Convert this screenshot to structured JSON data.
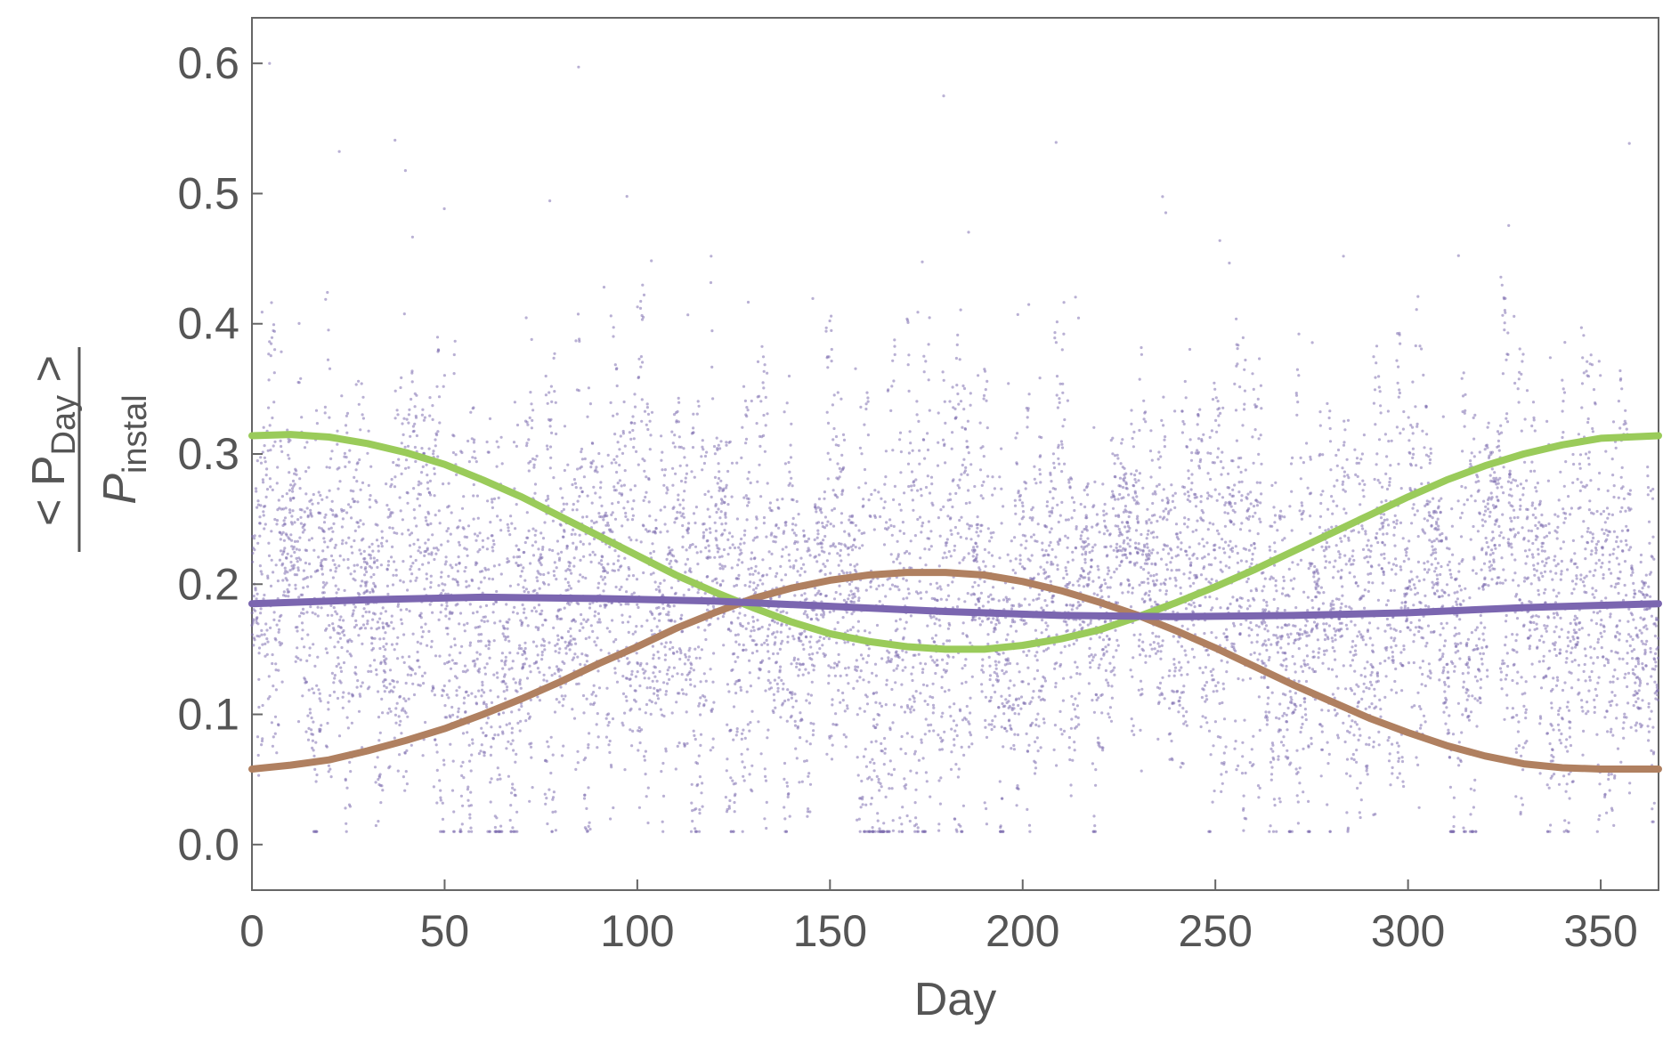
{
  "chart_data": {
    "type": "scatter",
    "title": "",
    "xlabel": "Day",
    "ylabel": {
      "numerator": "< P",
      "numerator_sub": "Day",
      "numerator_tail": " >",
      "denominator": "P",
      "denominator_sub": "instal"
    },
    "xlim": [
      0,
      365
    ],
    "ylim": [
      -0.035,
      0.635
    ],
    "xticks": [
      "0",
      "50",
      "100",
      "150",
      "200",
      "250",
      "300",
      "350"
    ],
    "yticks": [
      "0.0",
      "0.1",
      "0.2",
      "0.3",
      "0.4",
      "0.5",
      "0.6"
    ],
    "grid": false,
    "legend": "none",
    "scatter_series": {
      "color": "#8070b0",
      "points_per_day": 24,
      "mean": 0.185,
      "min": 0.01,
      "max": 0.6,
      "days": [
        0,
        365
      ]
    },
    "series": [
      {
        "color": "#9acb5a",
        "x": [
          0,
          10,
          20,
          30,
          40,
          50,
          60,
          70,
          80,
          90,
          100,
          110,
          120,
          130,
          140,
          150,
          160,
          170,
          180,
          190,
          200,
          210,
          220,
          230,
          240,
          250,
          260,
          270,
          280,
          290,
          300,
          310,
          320,
          330,
          340,
          350,
          365
        ],
        "y": [
          0.314,
          0.315,
          0.313,
          0.308,
          0.301,
          0.292,
          0.28,
          0.267,
          0.252,
          0.237,
          0.222,
          0.207,
          0.194,
          0.182,
          0.171,
          0.162,
          0.156,
          0.152,
          0.15,
          0.15,
          0.153,
          0.158,
          0.165,
          0.175,
          0.186,
          0.198,
          0.211,
          0.225,
          0.239,
          0.253,
          0.267,
          0.28,
          0.291,
          0.3,
          0.307,
          0.312,
          0.314
        ]
      },
      {
        "color": "#b08060",
        "x": [
          0,
          10,
          20,
          30,
          40,
          50,
          60,
          70,
          80,
          90,
          100,
          110,
          120,
          130,
          140,
          150,
          160,
          170,
          180,
          190,
          200,
          210,
          220,
          230,
          240,
          250,
          260,
          270,
          280,
          290,
          300,
          310,
          320,
          330,
          340,
          350,
          365
        ],
        "y": [
          0.058,
          0.061,
          0.065,
          0.072,
          0.08,
          0.089,
          0.1,
          0.112,
          0.125,
          0.139,
          0.152,
          0.166,
          0.178,
          0.189,
          0.197,
          0.203,
          0.207,
          0.209,
          0.209,
          0.207,
          0.202,
          0.195,
          0.186,
          0.176,
          0.164,
          0.151,
          0.137,
          0.123,
          0.11,
          0.097,
          0.086,
          0.076,
          0.068,
          0.062,
          0.059,
          0.058,
          0.058
        ]
      },
      {
        "color": "#7b66b0",
        "x": [
          0,
          30,
          60,
          90,
          120,
          150,
          180,
          210,
          240,
          270,
          300,
          330,
          365
        ],
        "y": [
          0.185,
          0.188,
          0.19,
          0.189,
          0.187,
          0.183,
          0.179,
          0.176,
          0.175,
          0.176,
          0.178,
          0.182,
          0.185
        ]
      }
    ]
  }
}
